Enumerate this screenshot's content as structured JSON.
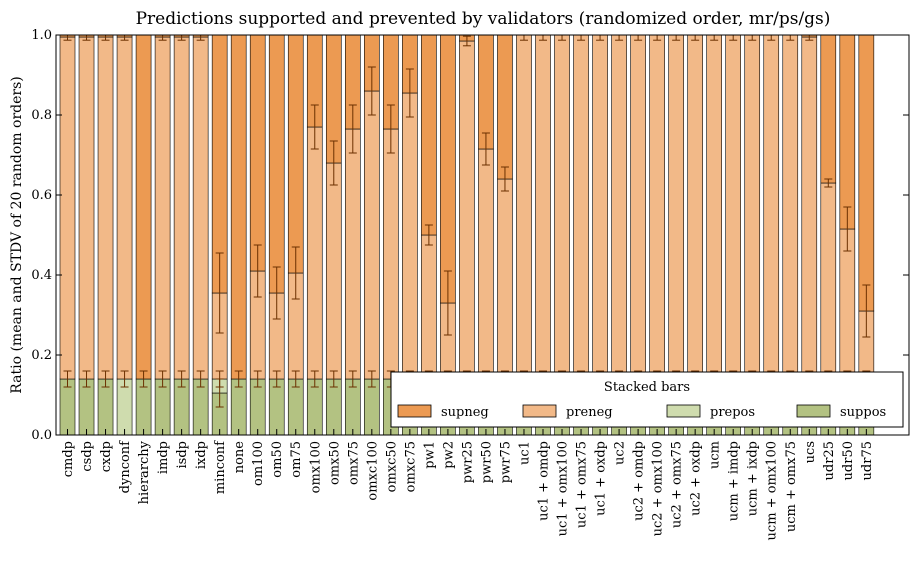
{
  "chart_data": {
    "type": "bar",
    "stacked": true,
    "title": "Predictions supported and prevented by validators (randomized order, mr/ps/gs)",
    "xlabel": "",
    "ylabel": "Ratio (mean and STDV of 20 random orders)",
    "ylim": [
      0,
      1
    ],
    "yticks": [
      "0.0",
      "0.2",
      "0.4",
      "0.6",
      "0.8",
      "1.0"
    ],
    "grid": false,
    "legend": {
      "title": "Stacked bars",
      "placement": "lower-right"
    },
    "colors": {
      "supneg": "#ec9a52",
      "preneg": "#f2b988",
      "prepos": "#cfdcae",
      "suppos": "#b3c282",
      "error_bar": "#6b3000",
      "edge": "#000000"
    },
    "categories": [
      "cmdp",
      "csdp",
      "cxdp",
      "dynconf",
      "hierarchy",
      "imdp",
      "isdp",
      "ixdp",
      "minconf",
      "none",
      "om100",
      "om50",
      "om75",
      "omx100",
      "omx50",
      "omx75",
      "omxc100",
      "omxc50",
      "omxc75",
      "pw1",
      "pw2",
      "pwr25",
      "pwr50",
      "pwr75",
      "uc1",
      "uc1 + omdp",
      "uc1 + omx100",
      "uc1 + omx75",
      "uc1 + oxdp",
      "uc2",
      "uc2 + omdp",
      "uc2 + omx100",
      "uc2 + omx75",
      "uc2 + oxdp",
      "ucm",
      "ucm + imdp",
      "ucm + ixdp",
      "ucm + omx100",
      "ucm + omx75",
      "ucs",
      "udr25",
      "udr50",
      "udr75"
    ],
    "series": [
      {
        "name": "suppos",
        "values": [
          0.14,
          0.14,
          0.14,
          0,
          0.14,
          0.14,
          0.14,
          0.14,
          0.105,
          0.14,
          0.14,
          0.14,
          0.14,
          0.14,
          0.14,
          0.14,
          0.14,
          0.14,
          0.14,
          0.14,
          0.14,
          0.14,
          0.14,
          0.14,
          0.14,
          0.14,
          0.14,
          0.14,
          0.14,
          0.14,
          0.14,
          0.14,
          0.14,
          0.14,
          0.14,
          0.14,
          0.14,
          0.14,
          0.14,
          0.14,
          0.14,
          0.14,
          0.14
        ]
      },
      {
        "name": "prepos",
        "values": [
          0,
          0,
          0,
          0.14,
          0,
          0,
          0,
          0,
          0.035,
          0,
          0,
          0,
          0,
          0,
          0,
          0,
          0,
          0,
          0,
          0,
          0,
          0,
          0,
          0,
          0,
          0,
          0,
          0,
          0,
          0,
          0,
          0,
          0,
          0,
          0,
          0,
          0,
          0,
          0,
          0,
          0,
          0,
          0
        ]
      },
      {
        "name": "preneg",
        "values": [
          0.855,
          0.855,
          0.855,
          0.855,
          0,
          0.855,
          0.855,
          0.855,
          0.215,
          0,
          0.27,
          0.215,
          0.265,
          0.63,
          0.54,
          0.625,
          0.72,
          0.625,
          0.715,
          0.36,
          0.19,
          0.845,
          0.575,
          0.5,
          0.86,
          0.86,
          0.86,
          0.86,
          0.86,
          0.86,
          0.86,
          0.86,
          0.86,
          0.86,
          0.86,
          0.86,
          0.86,
          0.86,
          0.86,
          0.855,
          0.49,
          0.375,
          0.17
        ]
      },
      {
        "name": "supneg",
        "values": [
          0.005,
          0.005,
          0.005,
          0.005,
          0.86,
          0.005,
          0.005,
          0.005,
          0.645,
          0.86,
          0.59,
          0.645,
          0.595,
          0.23,
          0.32,
          0.235,
          0.14,
          0.235,
          0.145,
          0.5,
          0.67,
          0.015,
          0.285,
          0.36,
          0,
          0,
          0,
          0,
          0,
          0,
          0,
          0,
          0,
          0,
          0,
          0,
          0,
          0,
          0,
          0.005,
          0.37,
          0.485,
          0.69
        ]
      }
    ],
    "error_bars": {
      "base": {
        "center": 0.14,
        "half": 0.02,
        "bars": [
          0,
          1,
          2,
          3,
          4,
          5,
          6,
          7,
          8,
          9,
          10,
          11,
          12,
          13,
          14,
          15,
          16,
          17,
          18,
          19,
          20,
          21,
          22,
          23,
          24,
          25,
          26,
          27,
          28,
          29,
          30,
          31,
          32,
          33,
          34,
          35,
          36,
          37,
          38,
          39,
          40,
          41,
          42
        ]
      },
      "minconf_prepos": {
        "index": 8,
        "center": 0.105,
        "half": 0.035
      },
      "top": [
        {
          "center": 0.995,
          "half": 0.008
        },
        {
          "center": 0.995,
          "half": 0.008
        },
        {
          "center": 0.995,
          "half": 0.008
        },
        {
          "center": 0.995,
          "half": 0.008
        },
        null,
        {
          "center": 0.995,
          "half": 0.008
        },
        {
          "center": 0.995,
          "half": 0.008
        },
        {
          "center": 0.995,
          "half": 0.008
        },
        {
          "center": 0.355,
          "half": 0.1
        },
        null,
        {
          "center": 0.41,
          "half": 0.065
        },
        {
          "center": 0.355,
          "half": 0.065
        },
        {
          "center": 0.405,
          "half": 0.065
        },
        {
          "center": 0.77,
          "half": 0.055
        },
        {
          "center": 0.68,
          "half": 0.055
        },
        {
          "center": 0.765,
          "half": 0.06
        },
        {
          "center": 0.86,
          "half": 0.06
        },
        {
          "center": 0.765,
          "half": 0.06
        },
        {
          "center": 0.855,
          "half": 0.06
        },
        {
          "center": 0.5,
          "half": 0.025
        },
        {
          "center": 0.33,
          "half": 0.08
        },
        {
          "center": 0.985,
          "half": 0.012
        },
        {
          "center": 0.715,
          "half": 0.04
        },
        {
          "center": 0.64,
          "half": 0.03
        },
        {
          "center": 0.995,
          "half": 0.008
        },
        {
          "center": 0.995,
          "half": 0.008
        },
        {
          "center": 0.995,
          "half": 0.008
        },
        {
          "center": 0.995,
          "half": 0.008
        },
        {
          "center": 0.995,
          "half": 0.008
        },
        {
          "center": 0.995,
          "half": 0.008
        },
        {
          "center": 0.995,
          "half": 0.008
        },
        {
          "center": 0.995,
          "half": 0.008
        },
        {
          "center": 0.995,
          "half": 0.008
        },
        {
          "center": 0.995,
          "half": 0.008
        },
        {
          "center": 0.995,
          "half": 0.008
        },
        {
          "center": 0.995,
          "half": 0.008
        },
        {
          "center": 0.995,
          "half": 0.008
        },
        {
          "center": 0.995,
          "half": 0.008
        },
        {
          "center": 0.995,
          "half": 0.008
        },
        {
          "center": 0.995,
          "half": 0.008
        },
        {
          "center": 0.63,
          "half": 0.01
        },
        {
          "center": 0.515,
          "half": 0.055
        },
        {
          "center": 0.31,
          "half": 0.065
        }
      ]
    },
    "legend_entries": [
      "supneg",
      "preneg",
      "prepos",
      "suppos"
    ]
  }
}
